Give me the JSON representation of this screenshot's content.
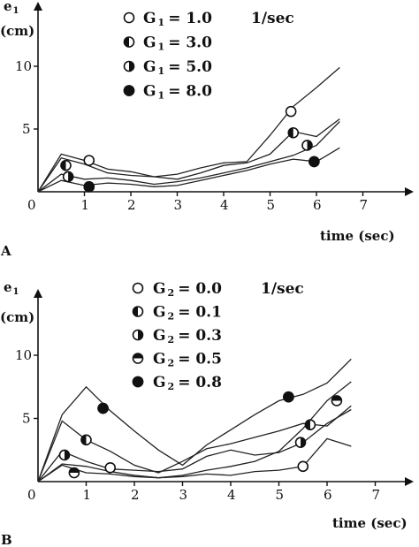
{
  "chart_data": [
    {
      "type": "line",
      "panel_label": "A",
      "ylabel": "e",
      "ylabel_sub": "1",
      "yunit": "(cm)",
      "xlabel": "time (sec)",
      "xlim": [
        0,
        7.8
      ],
      "ylim": [
        0,
        11
      ],
      "xticks": [
        0,
        1,
        2,
        3,
        4,
        5,
        6,
        7
      ],
      "yticks": [
        5,
        10
      ],
      "legend_var": "G",
      "legend_sub": "1",
      "legend_unit": "1/sec",
      "series": [
        {
          "name": "1.0",
          "marker": "open",
          "x": [
            0,
            0.5,
            1.0,
            1.5,
            2.0,
            2.5,
            3.0,
            3.5,
            4.0,
            4.5,
            5.0,
            5.5,
            6.0,
            6.5
          ],
          "y": [
            0,
            3.0,
            2.5,
            1.8,
            1.6,
            1.2,
            1.4,
            1.9,
            2.3,
            2.4,
            4.5,
            6.8,
            8.3,
            9.9
          ],
          "markers_at": [
            [
              1.1,
              2.5
            ],
            [
              5.45,
              6.4
            ]
          ]
        },
        {
          "name": "3.0",
          "marker": "half-left",
          "x": [
            0,
            0.5,
            1.0,
            1.5,
            2.0,
            2.5,
            3.0,
            3.5,
            4.0,
            4.5,
            5.0,
            5.5,
            6.0,
            6.5
          ],
          "y": [
            0,
            2.7,
            2.2,
            1.5,
            1.3,
            1.2,
            1.0,
            1.5,
            2.1,
            2.3,
            3.0,
            4.8,
            4.4,
            5.8
          ],
          "markers_at": [
            [
              0.6,
              2.1
            ],
            [
              5.5,
              4.7
            ]
          ]
        },
        {
          "name": "5.0",
          "marker": "half-right",
          "x": [
            0,
            0.5,
            1.0,
            1.5,
            2.0,
            2.5,
            3.0,
            3.5,
            4.0,
            4.5,
            5.0,
            5.5,
            6.0,
            6.5
          ],
          "y": [
            0,
            1.4,
            1.0,
            1.1,
            0.9,
            0.6,
            0.8,
            1.1,
            1.5,
            1.9,
            2.4,
            2.9,
            3.7,
            5.6
          ],
          "markers_at": [
            [
              0.65,
              1.2
            ],
            [
              5.8,
              3.7
            ]
          ]
        },
        {
          "name": "8.0",
          "marker": "filled",
          "x": [
            0,
            0.5,
            1.0,
            1.5,
            2.0,
            2.5,
            3.0,
            3.5,
            4.0,
            4.5,
            5.0,
            5.5,
            6.0,
            6.5
          ],
          "y": [
            0,
            0.9,
            0.5,
            0.7,
            0.6,
            0.4,
            0.5,
            0.9,
            1.3,
            1.7,
            2.2,
            2.6,
            2.4,
            3.5
          ],
          "markers_at": [
            [
              1.1,
              0.4
            ],
            [
              5.95,
              2.4
            ]
          ]
        }
      ]
    },
    {
      "type": "line",
      "panel_label": "B",
      "ylabel": "e",
      "ylabel_sub": "1",
      "yunit": "(cm)",
      "xlabel": "time (sec)",
      "xlim": [
        0,
        7.8
      ],
      "ylim": [
        0,
        11
      ],
      "xticks": [
        0,
        1,
        2,
        3,
        4,
        5,
        6,
        7
      ],
      "yticks": [
        5,
        10
      ],
      "legend_var": "G",
      "legend_sub": "2",
      "legend_unit": "1/sec",
      "series": [
        {
          "name": "0.0",
          "marker": "open",
          "x": [
            0,
            0.5,
            1.0,
            1.5,
            2.0,
            2.5,
            3.0,
            3.5,
            4.0,
            4.5,
            5.0,
            5.5,
            6.0,
            6.5
          ],
          "y": [
            0,
            1.4,
            1.2,
            0.8,
            0.5,
            0.3,
            0.4,
            0.6,
            0.5,
            0.8,
            0.9,
            1.2,
            3.4,
            2.8
          ],
          "markers_at": [
            [
              1.5,
              1.1
            ],
            [
              5.5,
              1.2
            ]
          ]
        },
        {
          "name": "0.1",
          "marker": "half-left",
          "x": [
            0,
            0.5,
            1.0,
            1.5,
            2.0,
            2.5,
            3.0,
            3.5,
            4.0,
            4.5,
            5.0,
            5.5,
            6.0,
            6.5
          ],
          "y": [
            0,
            4.8,
            3.3,
            2.4,
            1.3,
            0.7,
            1.6,
            2.6,
            3.0,
            3.5,
            4.0,
            4.6,
            4.4,
            6.0
          ],
          "markers_at": [
            [
              1.0,
              3.3
            ],
            [
              5.65,
              4.5
            ]
          ]
        },
        {
          "name": "0.3",
          "marker": "half-right",
          "x": [
            0,
            0.5,
            1.0,
            1.5,
            2.0,
            2.5,
            3.0,
            3.5,
            4.0,
            4.5,
            5.0,
            5.5,
            6.0,
            6.5
          ],
          "y": [
            0,
            2.4,
            1.6,
            1.0,
            0.9,
            0.8,
            1.0,
            2.0,
            2.5,
            2.1,
            2.3,
            3.1,
            4.6,
            5.7
          ],
          "markers_at": [
            [
              0.55,
              2.1
            ],
            [
              5.45,
              3.1
            ]
          ]
        },
        {
          "name": "0.5",
          "marker": "half-top",
          "x": [
            0,
            0.5,
            1.0,
            1.5,
            2.0,
            2.5,
            3.0,
            3.5,
            4.0,
            4.5,
            5.0,
            5.5,
            6.0,
            6.5
          ],
          "y": [
            0,
            1.3,
            0.7,
            0.6,
            0.4,
            0.3,
            0.5,
            0.9,
            1.2,
            1.6,
            2.4,
            4.2,
            6.4,
            7.9
          ],
          "markers_at": [
            [
              0.75,
              0.7
            ],
            [
              6.2,
              6.4
            ]
          ]
        },
        {
          "name": "0.8",
          "marker": "filled",
          "x": [
            0,
            0.5,
            1.0,
            1.5,
            2.0,
            2.5,
            3.0,
            3.5,
            4.0,
            4.5,
            5.0,
            5.5,
            6.0,
            6.5
          ],
          "y": [
            0,
            5.3,
            7.5,
            5.6,
            4.0,
            2.5,
            1.3,
            2.9,
            4.1,
            5.3,
            6.4,
            6.9,
            7.8,
            9.7
          ],
          "markers_at": [
            [
              1.35,
              5.8
            ],
            [
              5.2,
              6.7
            ]
          ]
        }
      ]
    }
  ]
}
